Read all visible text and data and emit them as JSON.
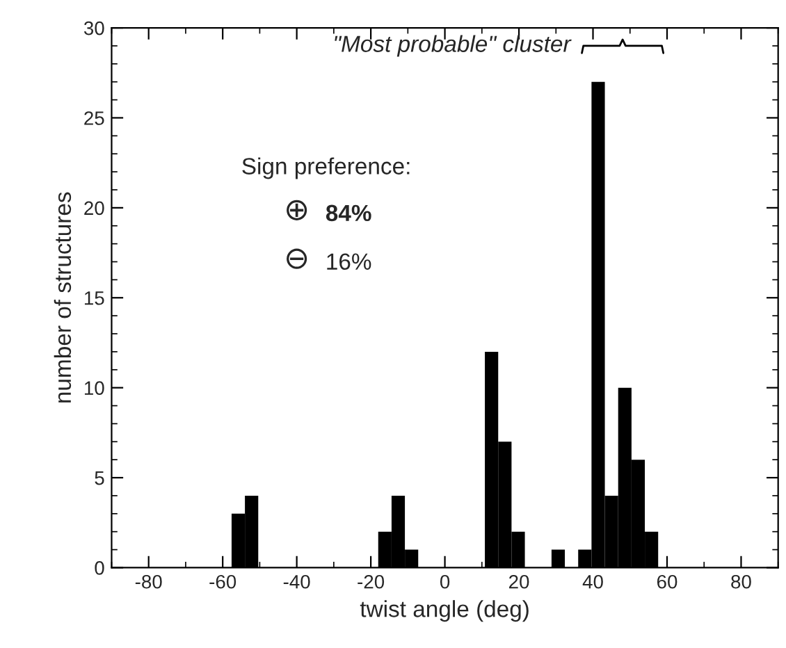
{
  "chart_data": {
    "type": "histogram",
    "xlabel": "twist angle (deg)",
    "ylabel": "number of structures",
    "bins": [
      -90,
      -86.4,
      -82.8,
      -79.2,
      -75.6,
      -72,
      -68.4,
      -64.8,
      -61.2,
      -57.6,
      -54,
      -50.4,
      -46.8,
      -43.2,
      -39.6,
      -36,
      -32.4,
      -28.8,
      -25.2,
      -21.6,
      -18,
      -14.4,
      -10.8,
      -7.2,
      -3.6,
      0,
      3.6,
      7.2,
      10.8,
      14.4,
      18,
      21.6,
      25.2,
      28.8,
      32.4,
      36,
      39.6,
      43.2,
      46.8,
      50.4,
      54,
      57.6,
      61.2,
      64.8,
      68.4,
      72,
      75.6,
      79.2,
      82.8,
      86.4,
      90
    ],
    "values": [
      0,
      0,
      0,
      0,
      0,
      0,
      0,
      0,
      0,
      3,
      4,
      0,
      0,
      0,
      0,
      0,
      0,
      0,
      0,
      0,
      2,
      4,
      1,
      0,
      0,
      0,
      0,
      0,
      12,
      7,
      2,
      0,
      0,
      1,
      0,
      1,
      27,
      4,
      10,
      6,
      2,
      0,
      0,
      0,
      0,
      0,
      0,
      0,
      0,
      0
    ],
    "color": "#000000",
    "xlim": [
      -90,
      90
    ],
    "xticks": [
      -80,
      -60,
      -40,
      -20,
      0,
      20,
      40,
      60,
      80
    ],
    "ylim": [
      0,
      30
    ],
    "yticks": [
      0,
      5,
      10,
      15,
      20,
      25,
      30
    ],
    "grid": false,
    "legend": false,
    "annotations": [
      "\"Most probable\" cluster",
      "Sign preference:",
      "⊕",
      "84%",
      "⊖",
      "16%"
    ]
  }
}
